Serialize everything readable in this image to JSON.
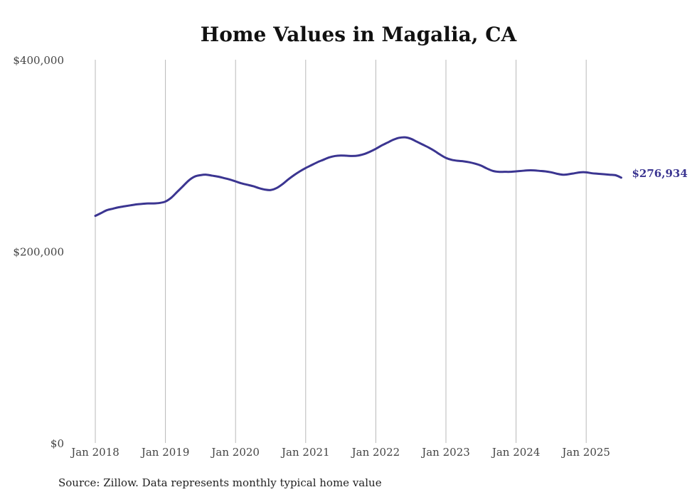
{
  "chart_data": {
    "type": "line",
    "title": "Home Values in Magalia, CA",
    "source": "Source: Zillow. Data represents monthly typical home value",
    "xlabel": "",
    "ylabel": "",
    "ylim": [
      0,
      400000
    ],
    "y_ticks": [
      {
        "value": 0,
        "label": "$0"
      },
      {
        "value": 200000,
        "label": "$200,000"
      },
      {
        "value": 400000,
        "label": "$400,000"
      }
    ],
    "x_ticks": [
      {
        "date": "2018-01",
        "label": "Jan 2018"
      },
      {
        "date": "2019-01",
        "label": "Jan 2019"
      },
      {
        "date": "2020-01",
        "label": "Jan 2020"
      },
      {
        "date": "2021-01",
        "label": "Jan 2021"
      },
      {
        "date": "2022-01",
        "label": "Jan 2022"
      },
      {
        "date": "2023-01",
        "label": "Jan 2023"
      },
      {
        "date": "2024-01",
        "label": "Jan 2024"
      },
      {
        "date": "2025-01",
        "label": "Jan 2025"
      }
    ],
    "grid": "vertical",
    "line_color": "#3b3591",
    "end_label": "$276,934",
    "series": [
      {
        "x": [
          "2018-01",
          "2018-02",
          "2018-03",
          "2018-04",
          "2018-05",
          "2018-06",
          "2018-07",
          "2018-08",
          "2018-09",
          "2018-10",
          "2018-11",
          "2018-12",
          "2019-01",
          "2019-02",
          "2019-03",
          "2019-04",
          "2019-05",
          "2019-06",
          "2019-07",
          "2019-08",
          "2019-09",
          "2019-10",
          "2019-11",
          "2019-12",
          "2020-01",
          "2020-02",
          "2020-03",
          "2020-04",
          "2020-05",
          "2020-06",
          "2020-07",
          "2020-08",
          "2020-09",
          "2020-10",
          "2020-11",
          "2020-12",
          "2021-01",
          "2021-02",
          "2021-03",
          "2021-04",
          "2021-05",
          "2021-06",
          "2021-07",
          "2021-08",
          "2021-09",
          "2021-10",
          "2021-11",
          "2021-12",
          "2022-01",
          "2022-02",
          "2022-03",
          "2022-04",
          "2022-05",
          "2022-06",
          "2022-07",
          "2022-08",
          "2022-09",
          "2022-10",
          "2022-11",
          "2022-12",
          "2023-01",
          "2023-02",
          "2023-03",
          "2023-04",
          "2023-05",
          "2023-06",
          "2023-07",
          "2023-08",
          "2023-09",
          "2023-10",
          "2023-11",
          "2023-12",
          "2024-01",
          "2024-02",
          "2024-03",
          "2024-04",
          "2024-05",
          "2024-06",
          "2024-07",
          "2024-08",
          "2024-09",
          "2024-10",
          "2024-11",
          "2024-12",
          "2025-01",
          "2025-02",
          "2025-03",
          "2025-04",
          "2025-05",
          "2025-06",
          "2025-07"
        ],
        "values": [
          237000,
          240000,
          243000,
          244500,
          246000,
          247000,
          248000,
          249000,
          249500,
          250000,
          250000,
          250500,
          252000,
          256000,
          262000,
          268000,
          274000,
          278000,
          279500,
          280000,
          279000,
          278000,
          276500,
          275000,
          273000,
          271000,
          269500,
          268000,
          266000,
          264500,
          264000,
          266000,
          270000,
          275000,
          279500,
          283500,
          287000,
          290000,
          293000,
          295500,
          298000,
          299500,
          300000,
          299800,
          299500,
          300000,
          301500,
          304000,
          307000,
          310500,
          313500,
          316500,
          318500,
          319000,
          317500,
          314500,
          311500,
          308500,
          305000,
          301000,
          297500,
          295500,
          294500,
          294000,
          293000,
          291500,
          289500,
          286500,
          284000,
          283000,
          283000,
          283000,
          283500,
          284000,
          284500,
          284500,
          284000,
          283500,
          282500,
          281000,
          280000,
          280500,
          281500,
          282500,
          282500,
          281500,
          281000,
          280500,
          280000,
          279500,
          276934
        ]
      }
    ]
  }
}
